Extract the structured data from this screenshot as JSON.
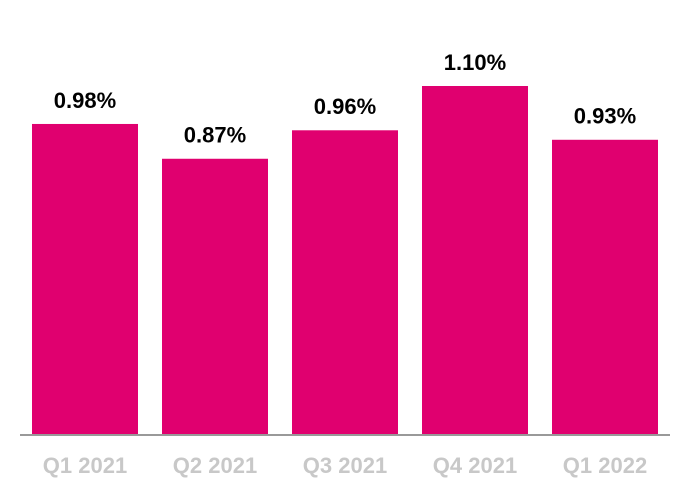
{
  "chart_data": {
    "type": "bar",
    "categories": [
      "Q1 2021",
      "Q2 2021",
      "Q3 2021",
      "Q4 2021",
      "Q1 2022"
    ],
    "values": [
      0.98,
      0.87,
      0.96,
      1.1,
      0.93
    ],
    "value_labels": [
      "0.98%",
      "0.87%",
      "0.96%",
      "1.10%",
      "0.93%"
    ],
    "color": "#e0006f"
  }
}
